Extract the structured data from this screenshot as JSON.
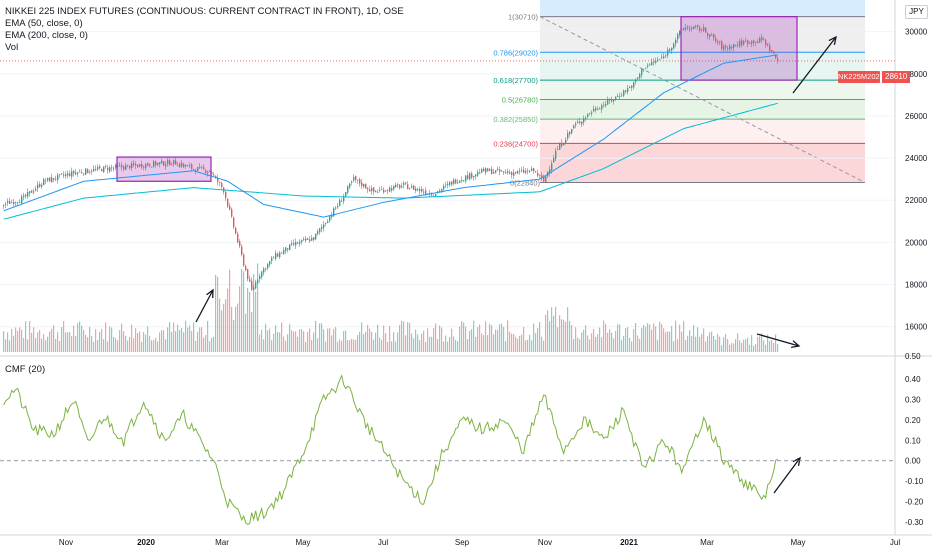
{
  "legend": {
    "title": "NIKKEI 225 INDEX FUTURES (CONTINUOUS: CURRENT CONTRACT IN FRONT), 1D, OSE",
    "ema50": "EMA (50, close, 0)",
    "ema200": "EMA (200, close, 0)",
    "vol": "Vol"
  },
  "currency": "JPY",
  "price_tag": {
    "symbol": "NK225M2021",
    "value": "28610"
  },
  "cmf_label": "CMF (20)",
  "colors": {
    "up": "#26a69a",
    "down": "#ef5350",
    "ema50": "#2196f3",
    "ema200": "#00bcd4",
    "cmf": "#7cb342",
    "box": "#9c27b0"
  },
  "chart_data": [
    {
      "type": "candlestick",
      "name": "price",
      "ylim": [
        14800,
        31500
      ],
      "y_ticks": [
        16000,
        18000,
        20000,
        22000,
        24000,
        26000,
        28000,
        30000
      ],
      "x_ticks": [
        "Nov",
        "2020",
        "Mar",
        "May",
        "Jul",
        "Sep",
        "Nov",
        "2021",
        "Mar",
        "May",
        "Jul"
      ],
      "close_anchors": [
        [
          0,
          21800
        ],
        [
          10,
          22100
        ],
        [
          20,
          22900
        ],
        [
          35,
          23300
        ],
        [
          50,
          23500
        ],
        [
          62,
          23600
        ],
        [
          72,
          23700
        ],
        [
          85,
          23800
        ],
        [
          95,
          23500
        ],
        [
          103,
          23400
        ],
        [
          110,
          22500
        ],
        [
          116,
          20400
        ],
        [
          120,
          19000
        ],
        [
          124,
          17700
        ],
        [
          128,
          18500
        ],
        [
          135,
          19300
        ],
        [
          145,
          19900
        ],
        [
          155,
          20200
        ],
        [
          168,
          21900
        ],
        [
          175,
          23000
        ],
        [
          185,
          22400
        ],
        [
          200,
          22700
        ],
        [
          215,
          22300
        ],
        [
          225,
          22900
        ],
        [
          240,
          23400
        ],
        [
          255,
          23300
        ],
        [
          265,
          23400
        ],
        [
          270,
          22900
        ],
        [
          276,
          24300
        ],
        [
          285,
          25500
        ],
        [
          295,
          26300
        ],
        [
          305,
          26800
        ],
        [
          315,
          27500
        ],
        [
          320,
          28300
        ],
        [
          330,
          28800
        ],
        [
          340,
          30200
        ],
        [
          350,
          30100
        ],
        [
          360,
          29200
        ],
        [
          370,
          29500
        ],
        [
          380,
          29600
        ],
        [
          387,
          28600
        ]
      ],
      "ema50_anchors": [
        [
          0,
          21500
        ],
        [
          40,
          22900
        ],
        [
          95,
          23400
        ],
        [
          112,
          22900
        ],
        [
          130,
          21800
        ],
        [
          160,
          21200
        ],
        [
          190,
          21900
        ],
        [
          230,
          22600
        ],
        [
          268,
          23000
        ],
        [
          300,
          24900
        ],
        [
          330,
          27100
        ],
        [
          360,
          28500
        ],
        [
          387,
          28900
        ]
      ],
      "ema200_anchors": [
        [
          0,
          21100
        ],
        [
          40,
          22100
        ],
        [
          95,
          22600
        ],
        [
          150,
          22200
        ],
        [
          200,
          22100
        ],
        [
          268,
          22400
        ],
        [
          300,
          23500
        ],
        [
          340,
          25400
        ],
        [
          387,
          26600
        ]
      ],
      "fibonacci": [
        {
          "label": "1(30710)",
          "value": 30710,
          "color": "#787b86"
        },
        {
          "label": "0.786(29020)",
          "value": 29020,
          "color": "#2196f3"
        },
        {
          "label": "0.618(27700)",
          "value": 27700,
          "color": "#089981"
        },
        {
          "label": "0.5(26780)",
          "value": 26780,
          "color": "#4caf50"
        },
        {
          "label": "0.382(25850)",
          "value": 25850,
          "color": "#66bb6a"
        },
        {
          "label": "0.236(24700)",
          "value": 24700,
          "color": "#f23645"
        },
        {
          "label": "0(22840)",
          "value": 22840,
          "color": "#787b86"
        }
      ],
      "price_line": 28610
    },
    {
      "type": "line",
      "name": "CMF (20)",
      "ylim": [
        -0.34,
        0.46
      ],
      "y_ticks": [
        "0.40",
        "0.30",
        "0.20",
        "0.10",
        "0.00",
        "-0.10",
        "-0.20",
        "-0.30"
      ],
      "zero_line": 0.0,
      "anchors": [
        [
          0,
          0.3
        ],
        [
          6,
          0.35
        ],
        [
          15,
          0.15
        ],
        [
          25,
          0.13
        ],
        [
          35,
          0.3
        ],
        [
          42,
          0.08
        ],
        [
          50,
          0.22
        ],
        [
          60,
          0.1
        ],
        [
          70,
          0.3
        ],
        [
          80,
          0.1
        ],
        [
          90,
          0.22
        ],
        [
          105,
          0.0
        ],
        [
          112,
          -0.2
        ],
        [
          120,
          -0.29
        ],
        [
          130,
          -0.26
        ],
        [
          140,
          -0.15
        ],
        [
          150,
          0.05
        ],
        [
          160,
          0.3
        ],
        [
          170,
          0.4
        ],
        [
          180,
          0.2
        ],
        [
          190,
          0.05
        ],
        [
          200,
          -0.1
        ],
        [
          210,
          -0.2
        ],
        [
          220,
          0.05
        ],
        [
          230,
          0.2
        ],
        [
          240,
          0.15
        ],
        [
          250,
          0.2
        ],
        [
          260,
          0.05
        ],
        [
          270,
          0.32
        ],
        [
          280,
          0.05
        ],
        [
          290,
          0.2
        ],
        [
          300,
          0.1
        ],
        [
          310,
          0.25
        ],
        [
          320,
          -0.05
        ],
        [
          330,
          0.1
        ],
        [
          340,
          -0.05
        ],
        [
          350,
          0.22
        ],
        [
          360,
          0.0
        ],
        [
          370,
          -0.1
        ],
        [
          380,
          -0.19
        ],
        [
          387,
          0.01
        ]
      ]
    }
  ]
}
